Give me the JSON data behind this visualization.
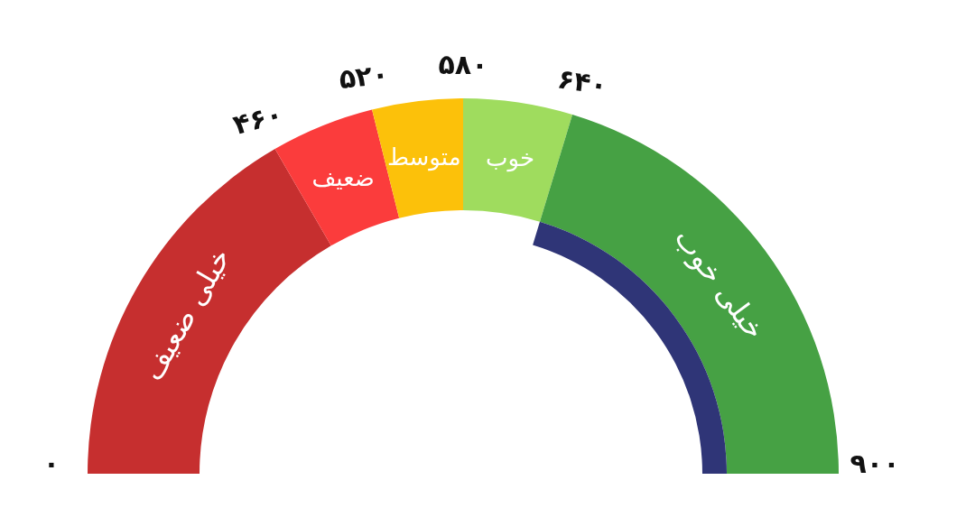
{
  "chart_data": {
    "type": "donut",
    "categories": [
      "خیلی ضعیف",
      "ضعیف",
      "متوسط",
      "خوب",
      "خیلی خوب"
    ],
    "values": [
      33.3,
      8.9,
      7.8,
      9.4,
      40.6
    ],
    "colors": [
      "#c62f2f",
      "#fb3c3c",
      "#fcc10a",
      "#9fdc5e",
      "#46a144"
    ],
    "annotations": [
      "۰",
      "۴۶۰",
      "۵۲۰",
      "۵۸۰",
      "۶۴۰",
      "۹۰۰"
    ]
  }
}
